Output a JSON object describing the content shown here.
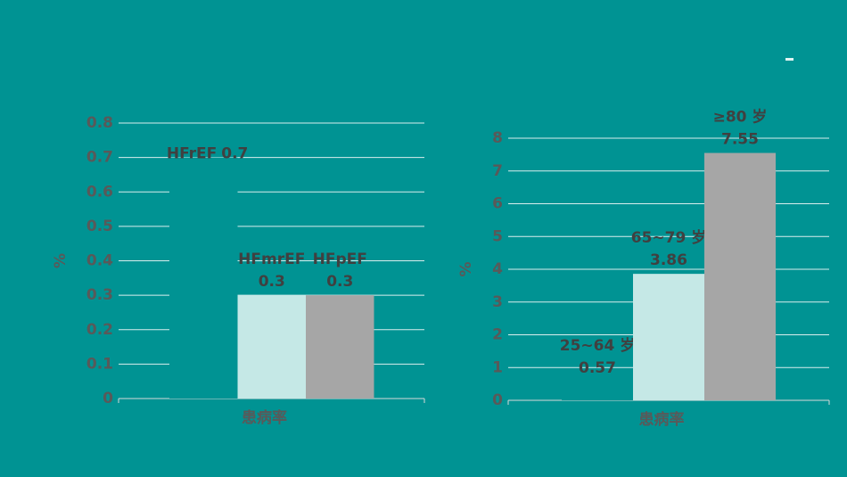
{
  "chart_data": [
    {
      "type": "bar",
      "categories": [
        "患病率"
      ],
      "y_label": "%",
      "ylim": [
        0,
        0.8
      ],
      "yticks": [
        0,
        0.1,
        0.2,
        0.3,
        0.4,
        0.5,
        0.6,
        0.7,
        0.8
      ],
      "grid": true,
      "series": [
        {
          "name": "HFrEF",
          "color": "#009393",
          "values": [
            0.7
          ]
        },
        {
          "name": "HFmrEF",
          "color": "#c5e8e6",
          "values": [
            0.3
          ]
        },
        {
          "name": "HFpEF",
          "color": "#a6a6a6",
          "values": [
            0.3
          ]
        }
      ]
    },
    {
      "type": "bar",
      "categories": [
        "患病率"
      ],
      "y_label": "%",
      "ylim": [
        0,
        8
      ],
      "yticks": [
        0,
        1,
        2,
        3,
        4,
        5,
        6,
        7,
        8
      ],
      "grid": true,
      "series": [
        {
          "name": "25~64 岁",
          "color": "#009393",
          "values": [
            0.57
          ]
        },
        {
          "name": "65~79 岁",
          "color": "#c5e8e6",
          "values": [
            3.86
          ]
        },
        {
          "name": "≥80 岁",
          "color": "#a6a6a6",
          "values": [
            7.55
          ]
        }
      ]
    }
  ]
}
